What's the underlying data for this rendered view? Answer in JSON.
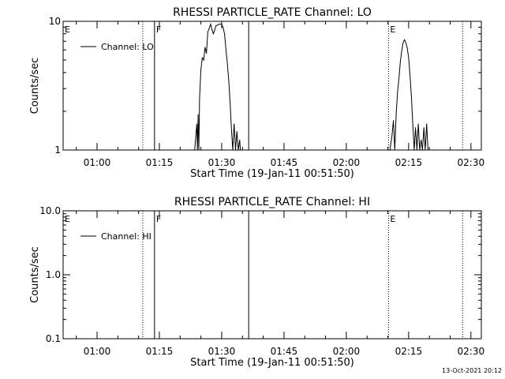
{
  "chart_data": [
    {
      "type": "line",
      "title": "RHESSI PARTICLE_RATE Channel: LO",
      "xlabel": "Start Time (19-Jan-11 00:51:50)",
      "ylabel": "Counts/sec",
      "yscale": "log",
      "ylim": [
        1,
        10
      ],
      "y_ticks": [
        "1",
        "10"
      ],
      "xlim": [
        "00:51:50",
        "02:32:30"
      ],
      "x_ticks": [
        "01:00",
        "01:15",
        "01:30",
        "01:45",
        "02:00",
        "02:15",
        "02:30"
      ],
      "grid": false,
      "legend": "top-left",
      "series": [
        {
          "name": "Channel: LO",
          "x": [
            "01:23:30",
            "01:24:00",
            "01:24:10",
            "01:24:20",
            "01:24:30",
            "01:24:40",
            "01:25:00",
            "01:25:20",
            "01:25:40",
            "01:26:00",
            "01:26:20",
            "01:26:40",
            "01:27:00",
            "01:27:20",
            "01:27:40",
            "01:28:00",
            "01:28:20",
            "01:28:40",
            "01:29:00",
            "01:29:20",
            "01:29:40",
            "01:30:00",
            "01:30:20",
            "01:30:40",
            "01:31:00",
            "01:31:20",
            "01:31:40",
            "01:32:00",
            "01:32:20",
            "01:32:40",
            "01:33:00",
            "01:33:20",
            "01:33:40",
            "01:34:00",
            "01:34:20",
            "01:34:30",
            "01:34:40"
          ],
          "values": [
            1.0,
            1.6,
            1.0,
            1.9,
            1.0,
            2.5,
            4.2,
            5.2,
            5.0,
            6.3,
            5.6,
            8.3,
            8.8,
            9.5,
            8.6,
            8.0,
            8.6,
            9.3,
            9.3,
            9.5,
            9.5,
            9.5,
            9.0,
            8.0,
            6.2,
            4.8,
            3.6,
            2.4,
            1.5,
            1.0,
            1.6,
            1.0,
            1.4,
            1.0,
            1.2,
            1.0,
            1.0
          ]
        },
        {
          "name": "Channel: LO",
          "x": [
            "02:10:30",
            "02:11:00",
            "02:11:20",
            "02:11:40",
            "02:12:00",
            "02:12:20",
            "02:12:40",
            "02:13:00",
            "02:13:20",
            "02:13:40",
            "02:14:00",
            "02:14:20",
            "02:14:40",
            "02:15:00",
            "02:15:20",
            "02:15:40",
            "02:16:00",
            "02:16:20",
            "02:16:40",
            "02:17:00",
            "02:17:20",
            "02:17:40",
            "02:18:00",
            "02:18:20",
            "02:18:40",
            "02:19:00",
            "02:19:20",
            "02:19:40",
            "02:20:00"
          ],
          "values": [
            1.0,
            1.3,
            1.7,
            1.0,
            1.9,
            2.8,
            3.6,
            4.8,
            5.9,
            6.8,
            7.2,
            6.8,
            6.2,
            5.2,
            3.8,
            2.6,
            1.6,
            1.0,
            1.5,
            1.0,
            1.6,
            1.0,
            1.2,
            1.0,
            1.5,
            1.0,
            1.6,
            1.0,
            1.0
          ]
        }
      ],
      "markers": [
        {
          "label": "E",
          "time": "00:51:50",
          "style": "none"
        },
        {
          "label": "",
          "time": "01:11:00",
          "style": "dotted"
        },
        {
          "label": "F",
          "time": "01:13:50",
          "style": "solid"
        },
        {
          "label": "",
          "time": "01:36:30",
          "style": "solid"
        },
        {
          "label": "E",
          "time": "02:10:10",
          "style": "dotted"
        },
        {
          "label": "",
          "time": "02:28:00",
          "style": "dotted"
        }
      ]
    },
    {
      "type": "line",
      "title": "RHESSI PARTICLE_RATE Channel: HI",
      "xlabel": "Start Time (19-Jan-11 00:51:50)",
      "ylabel": "Counts/sec",
      "yscale": "log",
      "ylim": [
        0.1,
        10
      ],
      "y_ticks": [
        "0.1",
        "1.0",
        "10.0"
      ],
      "xlim": [
        "00:51:50",
        "02:32:30"
      ],
      "x_ticks": [
        "01:00",
        "01:15",
        "01:30",
        "01:45",
        "02:00",
        "02:15",
        "02:30"
      ],
      "grid": false,
      "legend": "top-left",
      "series": [
        {
          "name": "Channel: HI",
          "x": [],
          "values": []
        }
      ],
      "markers": [
        {
          "label": "E",
          "time": "00:51:50",
          "style": "none"
        },
        {
          "label": "",
          "time": "01:11:00",
          "style": "dotted"
        },
        {
          "label": "F",
          "time": "01:13:50",
          "style": "solid"
        },
        {
          "label": "",
          "time": "01:36:30",
          "style": "solid"
        },
        {
          "label": "E",
          "time": "02:10:10",
          "style": "dotted"
        },
        {
          "label": "",
          "time": "02:28:00",
          "style": "dotted"
        }
      ]
    }
  ],
  "footer": {
    "timestamp": "13-Oct-2021 20:12"
  }
}
